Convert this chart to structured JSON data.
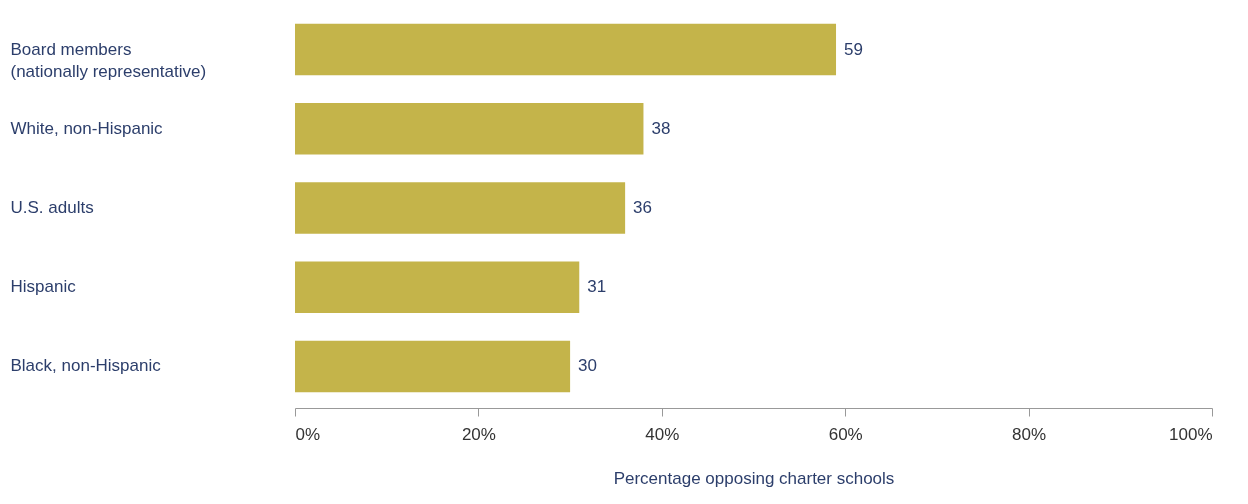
{
  "chart_data": {
    "type": "bar",
    "orientation": "horizontal",
    "xlabel": "Percentage opposing charter schools",
    "categories": [
      "Board members\n(nationally representative)",
      "White, non-Hispanic",
      "U.S. adults",
      "Hispanic",
      "Black, non-Hispanic"
    ],
    "values": [
      59,
      38,
      36,
      31,
      30
    ],
    "color": "#c4b44a",
    "data_labels": true,
    "grid": false,
    "xlim": [
      0,
      100
    ],
    "xticks": [
      {
        "value": 0,
        "label": "0%"
      },
      {
        "value": 20,
        "label": "20%"
      },
      {
        "value": 40,
        "label": "40%"
      },
      {
        "value": 60,
        "label": "60%"
      },
      {
        "value": 80,
        "label": "80%"
      },
      {
        "value": 100,
        "label": "100%"
      }
    ]
  }
}
